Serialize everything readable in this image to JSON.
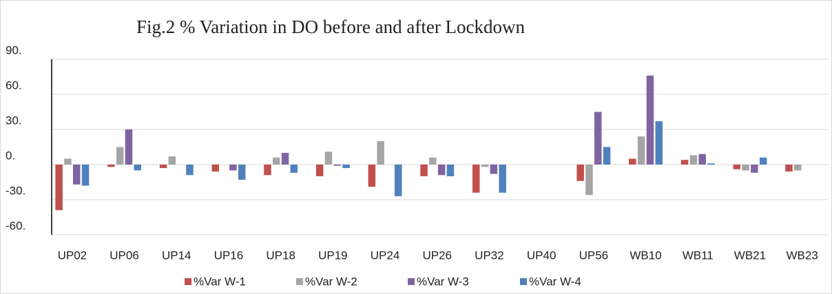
{
  "chart_data": {
    "type": "bar",
    "title": "Fig.2 % Variation in DO before and after Lockdown",
    "categories": [
      "UP02",
      "UP06",
      "UP14",
      "UP16",
      "UP18",
      "UP19",
      "UP24",
      "UP26",
      "UP32",
      "UP40",
      "UP56",
      "WB10",
      "WB11",
      "WB21",
      "WB23"
    ],
    "series": [
      {
        "name": "%Var W-1",
        "color": "#c0504d",
        "values": [
          -39,
          -2,
          -3,
          -6,
          -9,
          -10,
          -19,
          -10,
          -24,
          0,
          -14,
          5,
          4,
          -4,
          -6
        ]
      },
      {
        "name": "%Var W-2",
        "color": "#a5a5a5",
        "values": [
          5,
          15,
          7,
          0,
          6,
          11,
          20,
          6,
          -2,
          0,
          -26,
          24,
          8,
          -5,
          -5
        ]
      },
      {
        "name": "%Var W-3",
        "color": "#8064a2",
        "values": [
          -17,
          30,
          0,
          -5,
          10,
          -1,
          0,
          -9,
          -8,
          0,
          45,
          76,
          9,
          -7,
          0
        ]
      },
      {
        "name": "%Var W-4",
        "color": "#4f81bd",
        "values": [
          -18,
          -5,
          -9,
          -13,
          -7,
          -3,
          -27,
          -10,
          -24,
          0,
          15,
          37,
          1,
          6,
          0
        ]
      }
    ],
    "ylim": [
      -60,
      90
    ],
    "yticks": [
      {
        "value": -60,
        "label": "-60."
      },
      {
        "value": -30,
        "label": "-30."
      },
      {
        "value": 0,
        "label": "0."
      },
      {
        "value": 30,
        "label": "30."
      },
      {
        "value": 60,
        "label": "60."
      },
      {
        "value": 90,
        "label": "90."
      }
    ],
    "grid": true
  }
}
